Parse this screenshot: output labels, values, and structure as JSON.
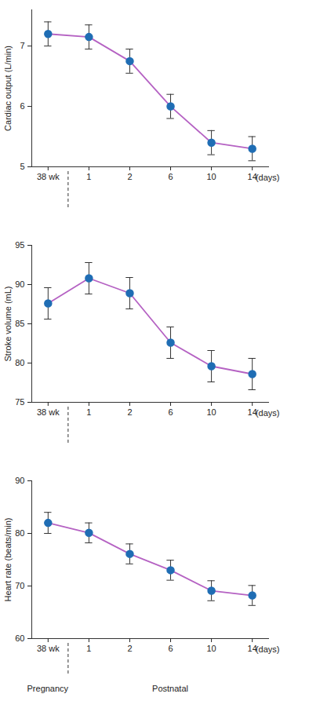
{
  "chart_data": [
    {
      "type": "line",
      "y_label": "Cardiac output (L/min)",
      "x_label": "(days)",
      "categories": [
        "38 wk",
        "1",
        "2",
        "6",
        "10",
        "14"
      ],
      "values": [
        7.2,
        7.15,
        6.75,
        6.0,
        5.4,
        5.3
      ],
      "errors": [
        0.2,
        0.2,
        0.2,
        0.2,
        0.2,
        0.2
      ],
      "color": "#b562c3",
      "marker": "circle",
      "colors": [
        "#1f6db4",
        "#1f6db4",
        "#1f6db4",
        "#1f6db4",
        "#1f6db4",
        "#1f6db4"
      ],
      "ylim": [
        5,
        7.6
      ],
      "yticks": [
        5,
        6,
        7
      ],
      "grid": false
    },
    {
      "type": "line",
      "y_label": "Stroke volume (mL)",
      "x_label": "(days)",
      "categories": [
        "38 wk",
        "1",
        "2",
        "6",
        "10",
        "14"
      ],
      "values": [
        87.6,
        90.8,
        88.9,
        82.6,
        79.6,
        78.6
      ],
      "errors": [
        2,
        2,
        2,
        2,
        2,
        2
      ],
      "color": "#b562c3",
      "marker": "circle",
      "colors": [
        "#1f6db4",
        "#1f6db4",
        "#1f6db4",
        "#1f6db4",
        "#1f6db4",
        "#1f6db4"
      ],
      "ylim": [
        75,
        95
      ],
      "yticks": [
        75,
        80,
        85,
        90,
        95
      ],
      "grid": false
    },
    {
      "type": "line",
      "y_label": "Heart rate (beats/min)",
      "x_label": "(days)",
      "categories": [
        "38 wk",
        "1",
        "2",
        "6",
        "10",
        "14"
      ],
      "values": [
        82,
        80.1,
        76.1,
        73,
        69.1,
        68.2
      ],
      "errors": [
        2,
        1.9,
        1.9,
        1.9,
        1.9,
        1.9
      ],
      "color": "#b562c3",
      "marker": "circle",
      "colors": [
        "#1f6db4",
        "#1f6db4",
        "#1f6db4",
        "#1f6db4",
        "#1f6db4",
        "#1f6db4"
      ],
      "ylim": [
        60,
        90
      ],
      "yticks": [
        60,
        70,
        80,
        90
      ],
      "grid": false,
      "annotations": [
        "Pregnancy",
        "Postnatal"
      ]
    }
  ]
}
